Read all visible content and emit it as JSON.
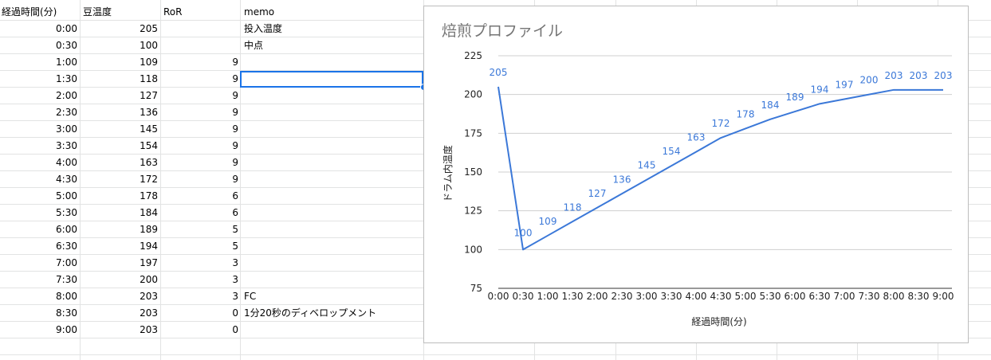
{
  "sheet": {
    "headers": [
      "経過時間(分)",
      "豆温度",
      "RoR",
      "memo"
    ],
    "rows": [
      {
        "time": "0:00",
        "temp": "205",
        "ror": "",
        "memo": "投入温度"
      },
      {
        "time": "0:30",
        "temp": "100",
        "ror": "",
        "memo": "中点"
      },
      {
        "time": "1:00",
        "temp": "109",
        "ror": "9",
        "memo": ""
      },
      {
        "time": "1:30",
        "temp": "118",
        "ror": "9",
        "memo": ""
      },
      {
        "time": "2:00",
        "temp": "127",
        "ror": "9",
        "memo": ""
      },
      {
        "time": "2:30",
        "temp": "136",
        "ror": "9",
        "memo": ""
      },
      {
        "time": "3:00",
        "temp": "145",
        "ror": "9",
        "memo": ""
      },
      {
        "time": "3:30",
        "temp": "154",
        "ror": "9",
        "memo": ""
      },
      {
        "time": "4:00",
        "temp": "163",
        "ror": "9",
        "memo": ""
      },
      {
        "time": "4:30",
        "temp": "172",
        "ror": "9",
        "memo": ""
      },
      {
        "time": "5:00",
        "temp": "178",
        "ror": "6",
        "memo": ""
      },
      {
        "time": "5:30",
        "temp": "184",
        "ror": "6",
        "memo": ""
      },
      {
        "time": "6:00",
        "temp": "189",
        "ror": "5",
        "memo": ""
      },
      {
        "time": "6:30",
        "temp": "194",
        "ror": "5",
        "memo": ""
      },
      {
        "time": "7:00",
        "temp": "197",
        "ror": "3",
        "memo": ""
      },
      {
        "time": "7:30",
        "temp": "200",
        "ror": "3",
        "memo": ""
      },
      {
        "time": "8:00",
        "temp": "203",
        "ror": "3",
        "memo": "FC"
      },
      {
        "time": "8:30",
        "temp": "203",
        "ror": "0",
        "memo": "1分20秒のディベロップメント"
      },
      {
        "time": "9:00",
        "temp": "203",
        "ror": "0",
        "memo": ""
      }
    ]
  },
  "chart": {
    "title": "焙煎プロファイル"
  },
  "chart_data": {
    "type": "line",
    "title": "焙煎プロファイル",
    "xlabel": "経過時間(分)",
    "ylabel": "ドラム内温度",
    "categories": [
      "0:00",
      "0:30",
      "1:00",
      "1:30",
      "2:00",
      "2:30",
      "3:00",
      "3:30",
      "4:00",
      "4:30",
      "5:00",
      "5:30",
      "6:00",
      "6:30",
      "7:00",
      "7:30",
      "8:00",
      "8:30",
      "9:00"
    ],
    "values": [
      205,
      100,
      109,
      118,
      127,
      136,
      145,
      154,
      163,
      172,
      178,
      184,
      189,
      194,
      197,
      200,
      203,
      203,
      203
    ],
    "yticks": [
      75,
      100,
      125,
      150,
      175,
      200,
      225
    ],
    "ylim": [
      75,
      225
    ],
    "grid": true,
    "data_labels": true,
    "line_color": "#3b78d8"
  }
}
